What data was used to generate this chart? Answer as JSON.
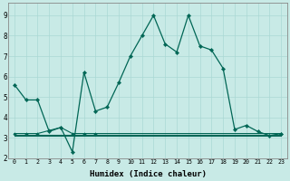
{
  "xlabel": "Humidex (Indice chaleur)",
  "background_color": "#c8eae6",
  "line_color": "#006655",
  "grid_color": "#aad8d4",
  "xlim": [
    -0.5,
    23.5
  ],
  "ylim": [
    2.0,
    9.6
  ],
  "yticks": [
    2,
    3,
    4,
    5,
    6,
    7,
    8,
    9
  ],
  "xticks": [
    0,
    1,
    2,
    3,
    4,
    5,
    6,
    7,
    8,
    9,
    10,
    11,
    12,
    13,
    14,
    15,
    16,
    17,
    18,
    19,
    20,
    21,
    22,
    23
  ],
  "series1_x": [
    0,
    1,
    2,
    3,
    4,
    5,
    6,
    7,
    8,
    9,
    10,
    11,
    12,
    13,
    14,
    15,
    16,
    17,
    18,
    19,
    20,
    21,
    22,
    23
  ],
  "series1_y": [
    5.6,
    4.85,
    4.85,
    3.3,
    3.5,
    2.3,
    6.2,
    4.3,
    4.5,
    5.7,
    7.0,
    8.0,
    9.0,
    7.6,
    7.2,
    9.0,
    7.5,
    7.3,
    6.4,
    3.4,
    3.6,
    3.3,
    3.1,
    3.2
  ],
  "series2_x": [
    0,
    1,
    2,
    3,
    4,
    5,
    6,
    7,
    23
  ],
  "series2_y": [
    3.2,
    3.2,
    3.2,
    3.35,
    3.5,
    3.2,
    3.2,
    3.2,
    3.2
  ],
  "series3_x": [
    0,
    23
  ],
  "series3_y": [
    3.15,
    3.15
  ],
  "series4_x": [
    0,
    23
  ],
  "series4_y": [
    3.1,
    3.1
  ]
}
